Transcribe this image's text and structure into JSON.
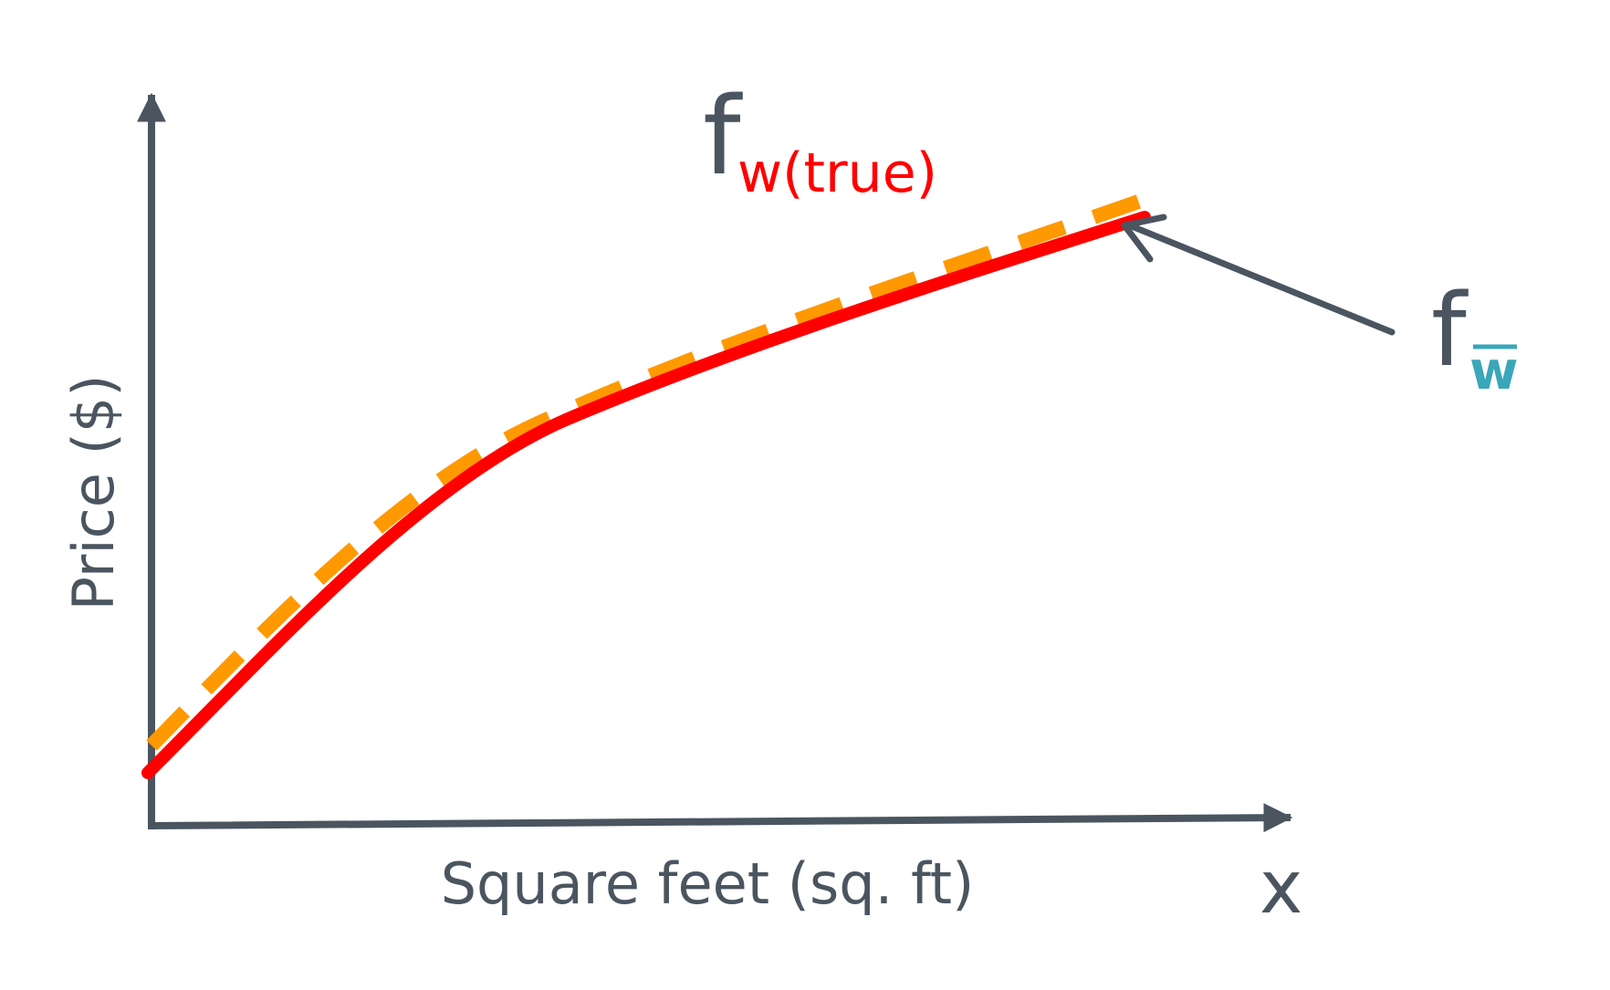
{
  "axes": {
    "y_label": "Price ($)",
    "x_label": "Square feet (sq. ft)",
    "x_symbol": "x"
  },
  "true_function": {
    "base": "f",
    "subscript": "w(true)"
  },
  "estimated_function": {
    "base": "f",
    "subscript": "w",
    "subscript_overline": true
  },
  "colors": {
    "axis": "#4a5560",
    "text": "#4a5560",
    "true_curve": "#ff0000",
    "estimate_curve": "#ff9900",
    "estimate_subscript": "#3aa6b9",
    "background": "#ffffff"
  },
  "styles": {
    "true_curve": "solid",
    "estimate_curve": "dashed"
  }
}
